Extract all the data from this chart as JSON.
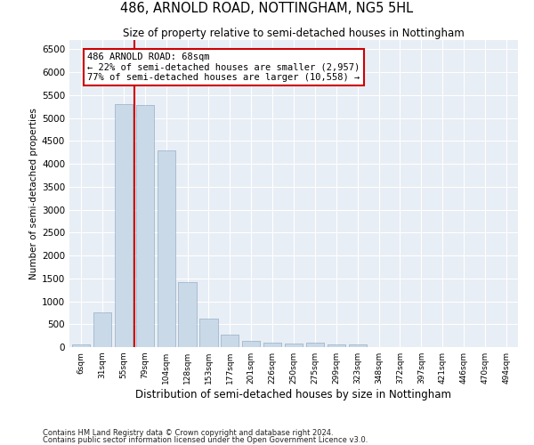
{
  "title": "486, ARNOLD ROAD, NOTTINGHAM, NG5 5HL",
  "subtitle": "Size of property relative to semi-detached houses in Nottingham",
  "xlabel": "Distribution of semi-detached houses by size in Nottingham",
  "ylabel": "Number of semi-detached properties",
  "footnote1": "Contains HM Land Registry data © Crown copyright and database right 2024.",
  "footnote2": "Contains public sector information licensed under the Open Government Licence v3.0.",
  "property_size": 68,
  "property_label": "486 ARNOLD ROAD: 68sqm",
  "pct_smaller": 22,
  "n_smaller": 2957,
  "pct_larger": 77,
  "n_larger": 10558,
  "bar_color": "#c9d9e8",
  "bar_edge_color": "#a0b8cc",
  "vline_color": "#cc0000",
  "annotation_box_color": "#cc0000",
  "background_color": "#e8eef5",
  "grid_color": "#ffffff",
  "categories": [
    "6sqm",
    "31sqm",
    "55sqm",
    "79sqm",
    "104sqm",
    "128sqm",
    "153sqm",
    "177sqm",
    "201sqm",
    "226sqm",
    "250sqm",
    "275sqm",
    "299sqm",
    "323sqm",
    "348sqm",
    "372sqm",
    "397sqm",
    "421sqm",
    "446sqm",
    "470sqm",
    "494sqm"
  ],
  "values": [
    50,
    750,
    5300,
    5280,
    4300,
    1420,
    630,
    270,
    145,
    100,
    80,
    95,
    55,
    50,
    5,
    5,
    3,
    2,
    2,
    2,
    2
  ],
  "ylim": [
    0,
    6700
  ],
  "yticks": [
    0,
    500,
    1000,
    1500,
    2000,
    2500,
    3000,
    3500,
    4000,
    4500,
    5000,
    5500,
    6000,
    6500
  ],
  "vline_x": 2.5
}
